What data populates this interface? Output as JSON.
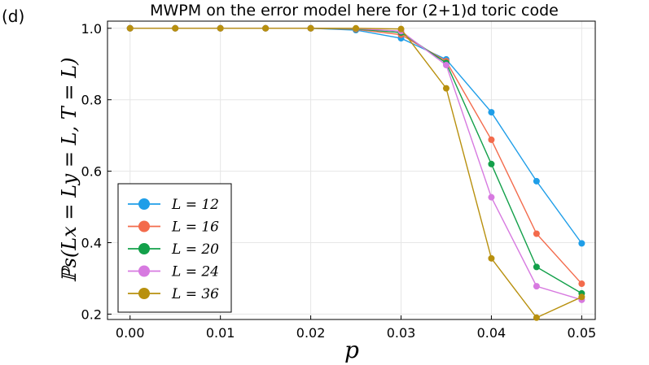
{
  "panel_label": "(d)",
  "colors": {
    "L12": "#1f9ee8",
    "L16": "#f36b4c",
    "L20": "#13a04a",
    "L24": "#d77ae0",
    "L36": "#b8900e"
  },
  "chart_data": {
    "type": "line",
    "title": "MWPM on the error model here for (2+1)d toric code",
    "xlabel": "p",
    "ylabel": "ℙs(Lx = Ly = L, T = L)",
    "xlim": [
      -0.0025,
      0.0515
    ],
    "ylim": [
      0.185,
      1.02
    ],
    "xticks": [
      "0.00",
      "0.01",
      "0.02",
      "0.03",
      "0.04",
      "0.05"
    ],
    "yticks": [
      "0.2",
      "0.4",
      "0.6",
      "0.8",
      "1.0"
    ],
    "grid": true,
    "legend_position": "bottom-left",
    "x": [
      0.0,
      0.005,
      0.01,
      0.015,
      0.02,
      0.025,
      0.03,
      0.035,
      0.04,
      0.045,
      0.05
    ],
    "series": [
      {
        "name": "L = 12",
        "color_key": "L12",
        "values": [
          1.0,
          1.0,
          1.0,
          1.0,
          1.0,
          0.995,
          0.972,
          0.913,
          0.765,
          0.572,
          0.398
        ]
      },
      {
        "name": "L = 16",
        "color_key": "L16",
        "values": [
          1.0,
          1.0,
          1.0,
          1.0,
          1.0,
          0.997,
          0.982,
          0.908,
          0.688,
          0.425,
          0.285
        ]
      },
      {
        "name": "L = 20",
        "color_key": "L20",
        "values": [
          1.0,
          1.0,
          1.0,
          1.0,
          1.0,
          0.998,
          0.988,
          0.903,
          0.62,
          0.332,
          0.258
        ]
      },
      {
        "name": "L = 24",
        "color_key": "L24",
        "values": [
          1.0,
          1.0,
          1.0,
          1.0,
          1.0,
          0.999,
          0.992,
          0.897,
          0.527,
          0.278,
          0.24
        ]
      },
      {
        "name": "L = 36",
        "color_key": "L36",
        "values": [
          1.0,
          1.0,
          1.0,
          1.0,
          1.0,
          1.0,
          0.998,
          0.832,
          0.356,
          0.19,
          0.248
        ]
      }
    ]
  }
}
